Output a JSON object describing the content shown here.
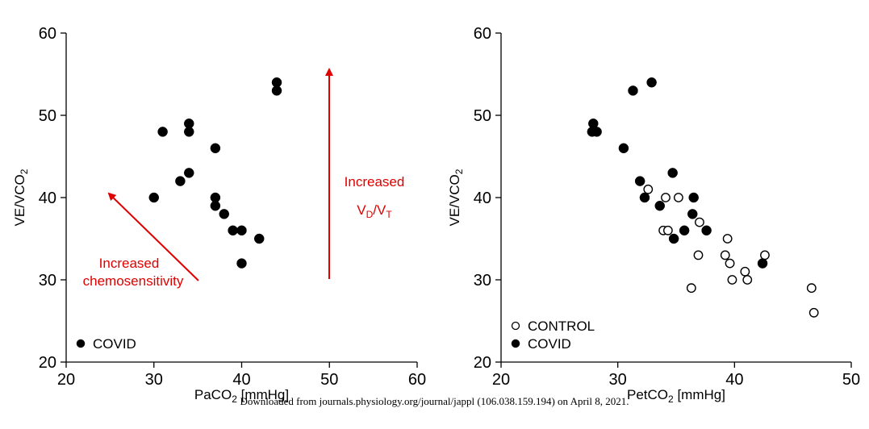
{
  "chart_data": [
    {
      "type": "scatter",
      "xlabel": "PaCO₂ [mmHg]",
      "ylabel": "VE/VCO₂",
      "xlim": [
        20,
        60
      ],
      "ylim": [
        20,
        60
      ],
      "xticks": [
        20,
        30,
        40,
        50,
        60
      ],
      "yticks": [
        20,
        30,
        40,
        50,
        60
      ],
      "legend_position": "bottom-left",
      "series": [
        {
          "name": "COVID",
          "marker": "filled-circle",
          "points": [
            [
              30,
              40
            ],
            [
              31,
              48
            ],
            [
              33,
              42
            ],
            [
              34,
              43
            ],
            [
              34,
              48
            ],
            [
              34,
              49
            ],
            [
              37,
              46
            ],
            [
              37,
              40
            ],
            [
              37,
              39
            ],
            [
              38,
              38
            ],
            [
              39,
              36
            ],
            [
              40,
              36
            ],
            [
              40,
              32
            ],
            [
              42,
              35
            ],
            [
              44,
              54
            ],
            [
              44,
              53
            ]
          ]
        }
      ],
      "annotations": [
        {
          "text": "Increased",
          "color": "#e00000"
        },
        {
          "text": "chemosensitivity",
          "color": "#e00000"
        },
        {
          "text": "Increased",
          "color": "#e00000"
        },
        {
          "text": "V",
          "color": "#e00000"
        },
        {
          "text": "D",
          "color": "#e00000"
        },
        {
          "text": "/V",
          "color": "#e00000"
        },
        {
          "text": "T",
          "color": "#e00000"
        }
      ]
    },
    {
      "type": "scatter",
      "xlabel": "PetCO₂  [mmHg]",
      "ylabel": "VE/VCO₂",
      "xlim": [
        20,
        50
      ],
      "ylim": [
        20,
        60
      ],
      "xticks": [
        20,
        30,
        40,
        50
      ],
      "yticks": [
        20,
        30,
        40,
        50,
        60
      ],
      "legend_position": "bottom-left",
      "series": [
        {
          "name": "CONTROL",
          "marker": "open-circle",
          "points": [
            [
              32.6,
              41
            ],
            [
              33.9,
              36
            ],
            [
              34.1,
              40
            ],
            [
              34.3,
              36
            ],
            [
              35.2,
              40
            ],
            [
              36.3,
              29
            ],
            [
              36.9,
              33
            ],
            [
              37,
              37
            ],
            [
              39.2,
              33
            ],
            [
              39.4,
              35
            ],
            [
              39.6,
              32
            ],
            [
              39.8,
              30
            ],
            [
              40.9,
              31
            ],
            [
              41.1,
              30
            ],
            [
              42.6,
              33
            ],
            [
              46.6,
              29
            ],
            [
              46.8,
              26
            ]
          ]
        },
        {
          "name": "COVID",
          "marker": "filled-circle",
          "points": [
            [
              27.8,
              48
            ],
            [
              27.9,
              49
            ],
            [
              28.2,
              48
            ],
            [
              30.5,
              46
            ],
            [
              31.3,
              53
            ],
            [
              31.9,
              42
            ],
            [
              32.3,
              40
            ],
            [
              32.9,
              54
            ],
            [
              33.6,
              39
            ],
            [
              34.7,
              43
            ],
            [
              34.8,
              35
            ],
            [
              35.7,
              36
            ],
            [
              36.4,
              38
            ],
            [
              36.5,
              40
            ],
            [
              37.6,
              36
            ],
            [
              42.4,
              32
            ]
          ]
        }
      ]
    }
  ],
  "watermark": "Downloaded from journals.physiology.org/journal/jappl (106.038.159.194) on April 8, 2021."
}
